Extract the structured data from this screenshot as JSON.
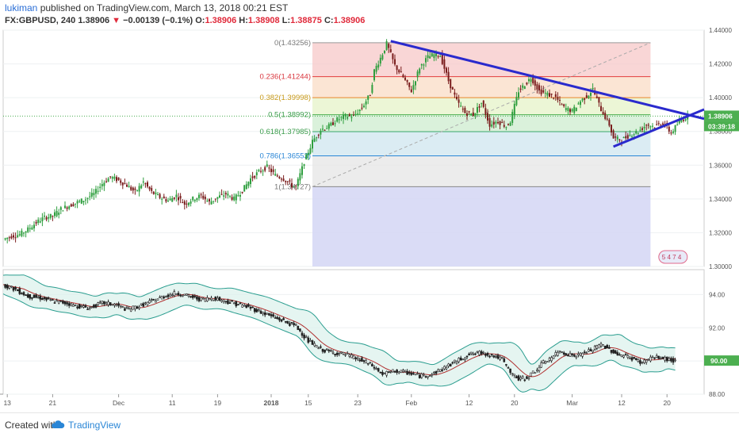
{
  "header": {
    "user": "lukiman",
    "published": "published on TradingView.com, March 13, 2018 00:21 EST"
  },
  "symbol_line": {
    "symbol": "FX:GBPUSD, 240",
    "price": "1.38906",
    "change_arrow": "▼",
    "change": "−0.00139 (−0.1%)",
    "o_label": "O:",
    "o": "1.38906",
    "h_label": "H:",
    "h": "1.38908",
    "l_label": "L:",
    "l": "1.38875",
    "c_label": "C:",
    "c": "1.38906"
  },
  "footer": {
    "created_with": "Created with",
    "brand": "TradingView"
  },
  "chart_data": [
    {
      "type": "candlestick",
      "panel": "price",
      "instrument": "GBPUSD",
      "timeframe": "240",
      "ylim": [
        1.3,
        1.44
      ],
      "y_ticks": [
        "1.44000",
        "1.42000",
        "1.40000",
        "1.38000",
        "1.36000",
        "1.34000",
        "1.32000",
        "1.30000"
      ],
      "last_price_label": "1.38906",
      "countdown_label": "03:39:18",
      "fibonacci": {
        "levels": [
          {
            "label": "0(1.43256)",
            "value": 1.43256
          },
          {
            "label": "0.236(1.41244)",
            "value": 1.41244
          },
          {
            "label": "0.382(1.39998)",
            "value": 1.39998
          },
          {
            "label": "0.5(1.38992)",
            "value": 1.38992
          },
          {
            "label": "0.618(1.37985)",
            "value": 1.37985
          },
          {
            "label": "0.786(1.36553)",
            "value": 1.36553
          },
          {
            "label": "1(1.34727)",
            "value": 1.34727
          }
        ]
      },
      "close_path": [
        [
          0,
          1.316
        ],
        [
          4,
          1.318
        ],
        [
          8,
          1.319
        ],
        [
          12,
          1.322
        ],
        [
          16,
          1.326
        ],
        [
          20,
          1.329
        ],
        [
          24,
          1.33
        ],
        [
          28,
          1.334
        ],
        [
          32,
          1.336
        ],
        [
          36,
          1.338
        ],
        [
          40,
          1.34
        ],
        [
          44,
          1.343
        ],
        [
          48,
          1.349
        ],
        [
          52,
          1.353
        ],
        [
          56,
          1.351
        ],
        [
          60,
          1.348
        ],
        [
          64,
          1.344
        ],
        [
          68,
          1.35
        ],
        [
          72,
          1.344
        ],
        [
          76,
          1.341
        ],
        [
          80,
          1.339
        ],
        [
          84,
          1.342
        ],
        [
          88,
          1.337
        ],
        [
          92,
          1.34
        ],
        [
          96,
          1.342
        ],
        [
          100,
          1.338
        ],
        [
          104,
          1.341
        ],
        [
          108,
          1.343
        ],
        [
          112,
          1.34
        ],
        [
          116,
          1.345
        ],
        [
          120,
          1.352
        ],
        [
          124,
          1.356
        ],
        [
          128,
          1.359
        ],
        [
          132,
          1.354
        ],
        [
          136,
          1.352
        ],
        [
          140,
          1.348
        ],
        [
          142,
          1.347
        ],
        [
          146,
          1.362
        ],
        [
          150,
          1.374
        ],
        [
          154,
          1.381
        ],
        [
          158,
          1.383
        ],
        [
          162,
          1.387
        ],
        [
          166,
          1.389
        ],
        [
          170,
          1.389
        ],
        [
          174,
          1.394
        ],
        [
          178,
          1.402
        ],
        [
          180,
          1.416
        ],
        [
          184,
          1.426
        ],
        [
          186,
          1.432
        ],
        [
          190,
          1.419
        ],
        [
          194,
          1.412
        ],
        [
          198,
          1.404
        ],
        [
          202,
          1.418
        ],
        [
          206,
          1.424
        ],
        [
          210,
          1.426
        ],
        [
          212,
          1.425
        ],
        [
          216,
          1.41
        ],
        [
          220,
          1.398
        ],
        [
          224,
          1.391
        ],
        [
          228,
          1.39
        ],
        [
          232,
          1.397
        ],
        [
          236,
          1.384
        ],
        [
          240,
          1.386
        ],
        [
          244,
          1.383
        ],
        [
          246,
          1.386
        ],
        [
          250,
          1.404
        ],
        [
          254,
          1.409
        ],
        [
          256,
          1.412
        ],
        [
          260,
          1.404
        ],
        [
          264,
          1.402
        ],
        [
          268,
          1.4
        ],
        [
          272,
          1.394
        ],
        [
          276,
          1.392
        ],
        [
          280,
          1.398
        ],
        [
          284,
          1.402
        ],
        [
          286,
          1.405
        ],
        [
          290,
          1.393
        ],
        [
          294,
          1.384
        ],
        [
          296,
          1.376
        ],
        [
          300,
          1.375
        ],
        [
          304,
          1.378
        ],
        [
          308,
          1.38
        ],
        [
          312,
          1.384
        ],
        [
          316,
          1.383
        ],
        [
          320,
          1.385
        ],
        [
          324,
          1.379
        ],
        [
          328,
          1.386
        ],
        [
          332,
          1.389
        ]
      ],
      "trendlines": [
        {
          "name": "upper-trendline",
          "from": [
            188,
            1.4335
          ],
          "to": [
            340,
            1.3875
          ]
        },
        {
          "name": "lower-trendline",
          "from": [
            296,
            1.371
          ],
          "to": [
            340,
            1.393
          ]
        }
      ],
      "x_ticks": [
        "13",
        "21",
        "Dec",
        "11",
        "19",
        "2018",
        "15",
        "23",
        "Feb",
        "12",
        "20",
        "Mar",
        "12",
        "20"
      ],
      "badge": "5 4 7 4"
    },
    {
      "type": "candlestick",
      "panel": "indicator",
      "ylim": [
        88.0,
        95.5
      ],
      "y_ticks": [
        "94.00",
        "92.00",
        "90.00",
        "88.00"
      ],
      "last_value_label": "90.00",
      "overlay": "bollinger-bands",
      "close_path": [
        [
          0,
          94.6
        ],
        [
          6,
          94.3
        ],
        [
          12,
          93.9
        ],
        [
          18,
          93.8
        ],
        [
          24,
          93.6
        ],
        [
          30,
          93.5
        ],
        [
          36,
          93.3
        ],
        [
          42,
          93.2
        ],
        [
          48,
          93.5
        ],
        [
          54,
          93.4
        ],
        [
          60,
          93.1
        ],
        [
          66,
          93.3
        ],
        [
          72,
          93.6
        ],
        [
          78,
          93.9
        ],
        [
          84,
          94.1
        ],
        [
          90,
          93.9
        ],
        [
          96,
          93.7
        ],
        [
          102,
          93.8
        ],
        [
          108,
          93.6
        ],
        [
          114,
          93.4
        ],
        [
          120,
          93.2
        ],
        [
          126,
          92.9
        ],
        [
          132,
          92.6
        ],
        [
          138,
          92.3
        ],
        [
          142,
          92.1
        ],
        [
          148,
          91.2
        ],
        [
          154,
          90.7
        ],
        [
          160,
          90.5
        ],
        [
          166,
          90.4
        ],
        [
          172,
          90.1
        ],
        [
          178,
          89.8
        ],
        [
          184,
          89.2
        ],
        [
          190,
          89.4
        ],
        [
          196,
          89.3
        ],
        [
          202,
          89.1
        ],
        [
          208,
          89.2
        ],
        [
          214,
          89.6
        ],
        [
          220,
          90.0
        ],
        [
          226,
          90.4
        ],
        [
          232,
          90.5
        ],
        [
          238,
          90.3
        ],
        [
          242,
          90.1
        ],
        [
          246,
          89.3
        ],
        [
          250,
          88.9
        ],
        [
          254,
          89.0
        ],
        [
          258,
          89.4
        ],
        [
          262,
          89.9
        ],
        [
          266,
          90.2
        ],
        [
          270,
          90.6
        ],
        [
          274,
          90.4
        ],
        [
          278,
          90.3
        ],
        [
          282,
          90.5
        ],
        [
          286,
          90.7
        ],
        [
          290,
          91.0
        ],
        [
          294,
          90.7
        ],
        [
          298,
          90.4
        ],
        [
          302,
          90.3
        ],
        [
          306,
          90.1
        ],
        [
          310,
          89.9
        ],
        [
          314,
          90.2
        ],
        [
          318,
          90.2
        ],
        [
          322,
          90.1
        ],
        [
          326,
          90.0
        ]
      ]
    }
  ]
}
